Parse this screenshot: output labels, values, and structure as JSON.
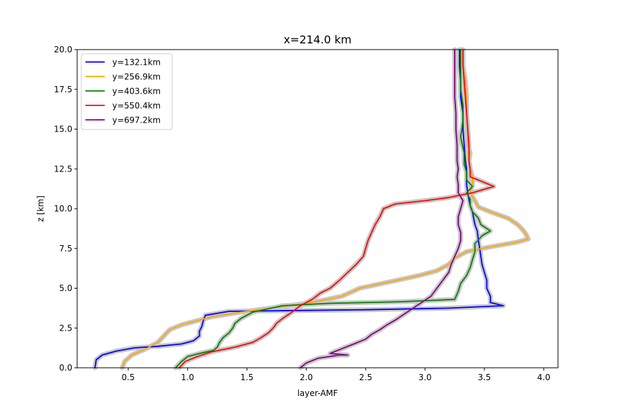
{
  "chart_data": {
    "type": "line",
    "title": "x=214.0 km",
    "xlabel": "layer-AMF",
    "ylabel": "z [km]",
    "xlim": [
      0.07,
      4.12
    ],
    "ylim": [
      0,
      20
    ],
    "x_ticks": [
      0.5,
      1.0,
      1.5,
      2.0,
      2.5,
      3.0,
      3.5,
      4.0
    ],
    "x_tick_labels": [
      "0.5",
      "1.0",
      "1.5",
      "2.0",
      "2.5",
      "3.0",
      "3.5",
      "4.0"
    ],
    "y_ticks": [
      0,
      2.5,
      5,
      7.5,
      10,
      12.5,
      15,
      17.5,
      20
    ],
    "y_tick_labels": [
      "0.0",
      "2.5",
      "5.0",
      "7.5",
      "10.0",
      "12.5",
      "15.0",
      "17.5",
      "20.0"
    ],
    "grid": false,
    "legend_position": "upper-left",
    "uncertainty_band_color": "#c8c8c8",
    "series": [
      {
        "name": "y=132.1km",
        "color": "#0000ff",
        "points": [
          [
            0.22,
            0.0
          ],
          [
            0.23,
            0.5
          ],
          [
            0.28,
            0.8
          ],
          [
            0.4,
            1.05
          ],
          [
            0.55,
            1.25
          ],
          [
            0.75,
            1.35
          ],
          [
            0.95,
            1.5
          ],
          [
            1.05,
            1.7
          ],
          [
            1.1,
            2.0
          ],
          [
            1.1,
            2.3
          ],
          [
            1.12,
            2.6
          ],
          [
            1.13,
            2.9
          ],
          [
            1.15,
            3.3
          ],
          [
            1.35,
            3.55
          ],
          [
            2.5,
            3.65
          ],
          [
            3.2,
            3.75
          ],
          [
            3.66,
            3.9
          ],
          [
            3.55,
            4.1
          ],
          [
            3.55,
            4.5
          ],
          [
            3.52,
            5.0
          ],
          [
            3.52,
            5.5
          ],
          [
            3.5,
            6.0
          ],
          [
            3.48,
            6.5
          ],
          [
            3.47,
            7.0
          ],
          [
            3.46,
            7.5
          ],
          [
            3.45,
            8.0
          ],
          [
            3.44,
            8.6
          ],
          [
            3.42,
            9.0
          ],
          [
            3.41,
            9.4
          ],
          [
            3.4,
            9.8
          ],
          [
            3.38,
            10.2
          ],
          [
            3.37,
            10.6
          ],
          [
            3.36,
            11.0
          ],
          [
            3.35,
            11.5
          ],
          [
            3.35,
            12.0
          ],
          [
            3.35,
            12.5
          ],
          [
            3.34,
            13.0
          ],
          [
            3.33,
            14.0
          ],
          [
            3.32,
            15.0
          ],
          [
            3.32,
            16.0
          ],
          [
            3.3,
            17.0
          ],
          [
            3.3,
            18.0
          ],
          [
            3.29,
            19.0
          ],
          [
            3.29,
            20.0
          ]
        ]
      },
      {
        "name": "y=256.9km",
        "color": "#ffa500",
        "points": [
          [
            0.45,
            0.0
          ],
          [
            0.47,
            0.4
          ],
          [
            0.53,
            0.8
          ],
          [
            0.65,
            1.2
          ],
          [
            0.75,
            1.6
          ],
          [
            0.8,
            2.0
          ],
          [
            0.85,
            2.4
          ],
          [
            0.95,
            2.7
          ],
          [
            1.05,
            2.9
          ],
          [
            1.2,
            3.2
          ],
          [
            1.45,
            3.5
          ],
          [
            1.75,
            3.8
          ],
          [
            2.05,
            4.1
          ],
          [
            2.3,
            4.5
          ],
          [
            2.45,
            5.0
          ],
          [
            2.7,
            5.4
          ],
          [
            2.95,
            5.8
          ],
          [
            3.1,
            6.1
          ],
          [
            3.2,
            6.5
          ],
          [
            3.25,
            6.9
          ],
          [
            3.35,
            7.3
          ],
          [
            3.55,
            7.6
          ],
          [
            3.78,
            7.9
          ],
          [
            3.87,
            8.1
          ],
          [
            3.85,
            8.4
          ],
          [
            3.82,
            8.7
          ],
          [
            3.78,
            9.0
          ],
          [
            3.7,
            9.4
          ],
          [
            3.55,
            9.8
          ],
          [
            3.45,
            10.1
          ],
          [
            3.42,
            10.5
          ],
          [
            3.38,
            11.0
          ],
          [
            3.4,
            11.5
          ],
          [
            3.4,
            12.0
          ],
          [
            3.38,
            12.5
          ],
          [
            3.37,
            13.0
          ],
          [
            3.38,
            13.5
          ],
          [
            3.36,
            14.0
          ],
          [
            3.36,
            15.0
          ],
          [
            3.35,
            16.0
          ],
          [
            3.35,
            17.0
          ],
          [
            3.34,
            18.0
          ],
          [
            3.32,
            19.0
          ],
          [
            3.32,
            20.0
          ]
        ]
      },
      {
        "name": "y=403.6km",
        "color": "#008000",
        "points": [
          [
            0.9,
            0.0
          ],
          [
            0.95,
            0.4
          ],
          [
            1.0,
            0.7
          ],
          [
            1.1,
            0.9
          ],
          [
            1.22,
            1.1
          ],
          [
            1.25,
            1.3
          ],
          [
            1.27,
            1.6
          ],
          [
            1.3,
            1.9
          ],
          [
            1.35,
            2.2
          ],
          [
            1.38,
            2.5
          ],
          [
            1.4,
            2.8
          ],
          [
            1.45,
            3.1
          ],
          [
            1.55,
            3.5
          ],
          [
            1.8,
            3.9
          ],
          [
            2.2,
            4.05
          ],
          [
            2.8,
            4.15
          ],
          [
            3.25,
            4.3
          ],
          [
            3.28,
            4.8
          ],
          [
            3.3,
            5.3
          ],
          [
            3.35,
            5.8
          ],
          [
            3.38,
            6.3
          ],
          [
            3.4,
            6.8
          ],
          [
            3.42,
            7.3
          ],
          [
            3.42,
            7.8
          ],
          [
            3.48,
            8.3
          ],
          [
            3.55,
            8.6
          ],
          [
            3.47,
            9.0
          ],
          [
            3.45,
            9.4
          ],
          [
            3.4,
            9.8
          ],
          [
            3.38,
            10.2
          ],
          [
            3.38,
            10.6
          ],
          [
            3.35,
            11.0
          ],
          [
            3.4,
            11.4
          ],
          [
            3.35,
            11.8
          ],
          [
            3.35,
            12.3
          ],
          [
            3.33,
            12.8
          ],
          [
            3.33,
            13.5
          ],
          [
            3.3,
            14.5
          ],
          [
            3.32,
            15.5
          ],
          [
            3.32,
            16.5
          ],
          [
            3.3,
            17.5
          ],
          [
            3.3,
            18.5
          ],
          [
            3.3,
            19.5
          ],
          [
            3.3,
            20.0
          ]
        ]
      },
      {
        "name": "y=550.4km",
        "color": "#ff0000",
        "points": [
          [
            0.93,
            0.0
          ],
          [
            0.98,
            0.4
          ],
          [
            1.08,
            0.7
          ],
          [
            1.2,
            1.0
          ],
          [
            1.4,
            1.3
          ],
          [
            1.55,
            1.6
          ],
          [
            1.62,
            1.9
          ],
          [
            1.68,
            2.2
          ],
          [
            1.72,
            2.5
          ],
          [
            1.75,
            2.8
          ],
          [
            1.8,
            3.1
          ],
          [
            1.88,
            3.5
          ],
          [
            1.95,
            3.9
          ],
          [
            2.05,
            4.3
          ],
          [
            2.12,
            4.7
          ],
          [
            2.2,
            5.0
          ],
          [
            2.28,
            5.5
          ],
          [
            2.35,
            6.0
          ],
          [
            2.42,
            6.5
          ],
          [
            2.48,
            7.0
          ],
          [
            2.5,
            7.5
          ],
          [
            2.52,
            8.0
          ],
          [
            2.55,
            8.5
          ],
          [
            2.58,
            9.0
          ],
          [
            2.62,
            9.5
          ],
          [
            2.65,
            10.0
          ],
          [
            2.75,
            10.3
          ],
          [
            3.0,
            10.5
          ],
          [
            3.2,
            10.7
          ],
          [
            3.4,
            11.0
          ],
          [
            3.58,
            11.4
          ],
          [
            3.45,
            11.8
          ],
          [
            3.38,
            12.0
          ],
          [
            3.38,
            12.5
          ],
          [
            3.37,
            13.0
          ],
          [
            3.37,
            14.0
          ],
          [
            3.36,
            15.0
          ],
          [
            3.35,
            16.0
          ],
          [
            3.34,
            17.0
          ],
          [
            3.33,
            18.0
          ],
          [
            3.32,
            19.0
          ],
          [
            3.32,
            20.0
          ]
        ]
      },
      {
        "name": "y=697.2km",
        "color": "#800080",
        "points": [
          [
            1.95,
            0.0
          ],
          [
            2.0,
            0.3
          ],
          [
            2.1,
            0.6
          ],
          [
            2.28,
            0.8
          ],
          [
            2.35,
            0.8
          ],
          [
            2.2,
            0.9
          ],
          [
            2.3,
            1.2
          ],
          [
            2.4,
            1.5
          ],
          [
            2.5,
            1.8
          ],
          [
            2.55,
            2.1
          ],
          [
            2.62,
            2.4
          ],
          [
            2.68,
            2.7
          ],
          [
            2.75,
            3.0
          ],
          [
            2.85,
            3.5
          ],
          [
            2.95,
            4.0
          ],
          [
            3.05,
            4.5
          ],
          [
            3.1,
            5.0
          ],
          [
            3.15,
            5.5
          ],
          [
            3.2,
            6.0
          ],
          [
            3.22,
            6.5
          ],
          [
            3.25,
            7.0
          ],
          [
            3.28,
            7.5
          ],
          [
            3.3,
            8.0
          ],
          [
            3.3,
            8.5
          ],
          [
            3.28,
            9.0
          ],
          [
            3.28,
            9.5
          ],
          [
            3.3,
            10.0
          ],
          [
            3.32,
            10.5
          ],
          [
            3.28,
            11.0
          ],
          [
            3.28,
            11.5
          ],
          [
            3.27,
            12.0
          ],
          [
            3.28,
            12.5
          ],
          [
            3.27,
            13.0
          ],
          [
            3.27,
            14.0
          ],
          [
            3.26,
            15.0
          ],
          [
            3.26,
            16.0
          ],
          [
            3.25,
            17.0
          ],
          [
            3.25,
            18.0
          ],
          [
            3.25,
            19.0
          ],
          [
            3.25,
            20.0
          ]
        ]
      }
    ]
  }
}
